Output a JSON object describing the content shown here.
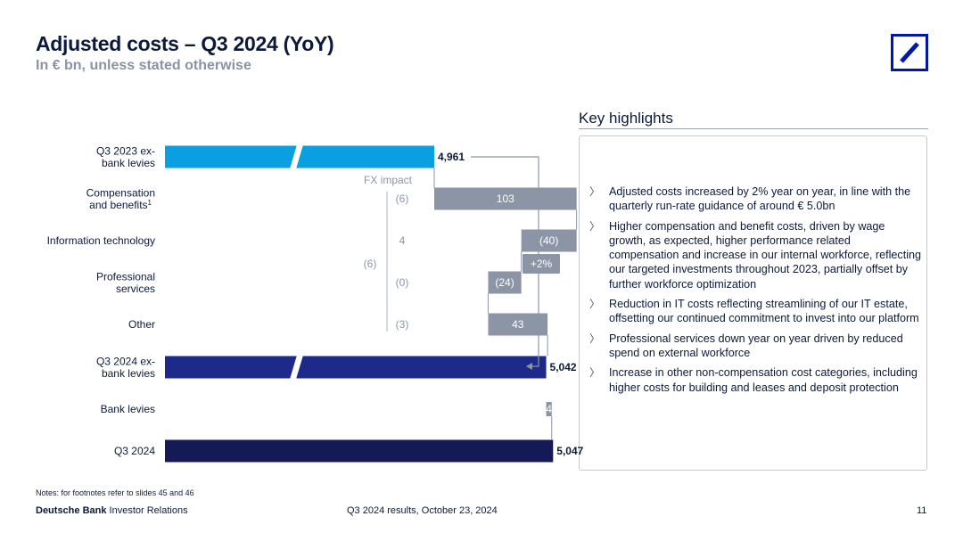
{
  "header": {
    "title": "Adjusted costs – Q3 2024 (YoY)",
    "subtitle": "In € bn, unless stated otherwise"
  },
  "logo": {
    "icon": "deutsche-bank-slash-logo",
    "color": "#0018a8"
  },
  "highlights": {
    "title": "Key highlights",
    "bullet_glyph": "〉",
    "items": [
      "Adjusted costs increased by 2% year on year, in line with the quarterly run-rate guidance of around € 5.0bn",
      "Higher compensation and benefit costs, driven by wage growth, as expected, higher performance related compensation and increase in our internal workforce, reflecting our targeted investments throughout 2023, partially offset by further workforce optimization",
      "Reduction in IT costs reflecting streamlining of our IT estate, offsetting our continued commitment to invest into our platform",
      "Professional services down year on year driven by reduced spend on external workforce",
      "Increase in other non-compensation cost categories, including higher costs for building and leases and deposit protection"
    ]
  },
  "chart_data": {
    "type": "bar",
    "subtype": "waterfall",
    "categories_lines": [
      [
        "Q3 2023 ex-",
        "bank levies"
      ],
      [
        "Compensation",
        "and benefits"
      ],
      [
        "Information technology"
      ],
      [
        "Professional",
        "services"
      ],
      [
        "Other"
      ],
      [
        "Q3 2024 ex-",
        "bank levies"
      ],
      [
        "Bank levies"
      ],
      [
        "Q3 2024"
      ]
    ],
    "footnote_marker": "1",
    "values": [
      4961,
      103,
      -40,
      -24,
      43,
      5042,
      4,
      5047
    ],
    "kinds": [
      "total",
      "delta",
      "delta",
      "delta",
      "delta",
      "total",
      "delta",
      "total"
    ],
    "value_labels": [
      "4,961",
      "103",
      "(40)",
      "(24)",
      "43",
      "5,042",
      "4",
      "5,047"
    ],
    "fx_impact": {
      "label": "FX impact",
      "values": [
        "(6)",
        "4",
        "(0)",
        "(3)"
      ],
      "total": "(6)"
    },
    "change_label": "+2%",
    "axis_break": true,
    "colors": {
      "q3_2023": "#0a9fe0",
      "q3_2024_ex": "#1d2a8a",
      "q3_2024": "#131a55",
      "delta": "#8b95a6",
      "connector": "#8b95a6"
    }
  },
  "footer": {
    "notes": "Notes: for footnotes refer to slides 45 and 46",
    "brand_bold": "Deutsche Bank",
    "brand_rest": " Investor Relations",
    "center": "Q3 2024 results, October 23, 2024",
    "page": "11"
  }
}
